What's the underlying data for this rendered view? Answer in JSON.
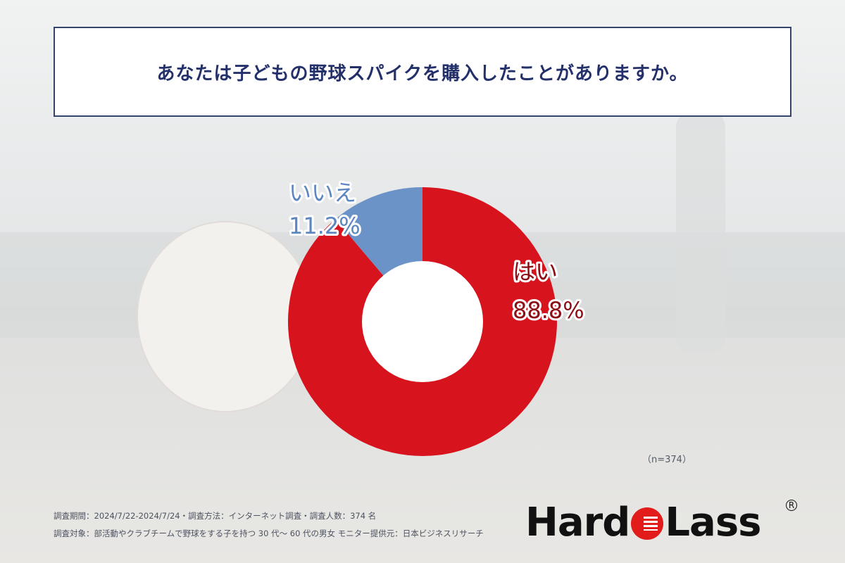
{
  "title": "あなたは子どもの野球スパイクを購入したことがありますか。",
  "sample_note": "（n=374）",
  "footnotes": [
    "調査期間：2024/7/22-2024/7/24・調査方法：インターネット調査・調査人数：374 名",
    "調査対象：部活動やクラブチームで野球をする子を持つ 30 代〜 60 代の男女 モニター提供元：日本ビジネスリサーチ"
  ],
  "logo": {
    "text_before": "Hard",
    "text_after": "Lass",
    "reg": "R"
  },
  "chart_data": {
    "type": "pie",
    "donut": true,
    "slices": [
      {
        "label": "はい",
        "value": 88.8,
        "value_label": "88.8%",
        "color": "#d7141e",
        "label_color": "#8c0e14"
      },
      {
        "label": "いいえ",
        "value": 11.2,
        "value_label": "11.2%",
        "color": "#6b93c7",
        "label_color": "#5b86bf"
      }
    ]
  }
}
